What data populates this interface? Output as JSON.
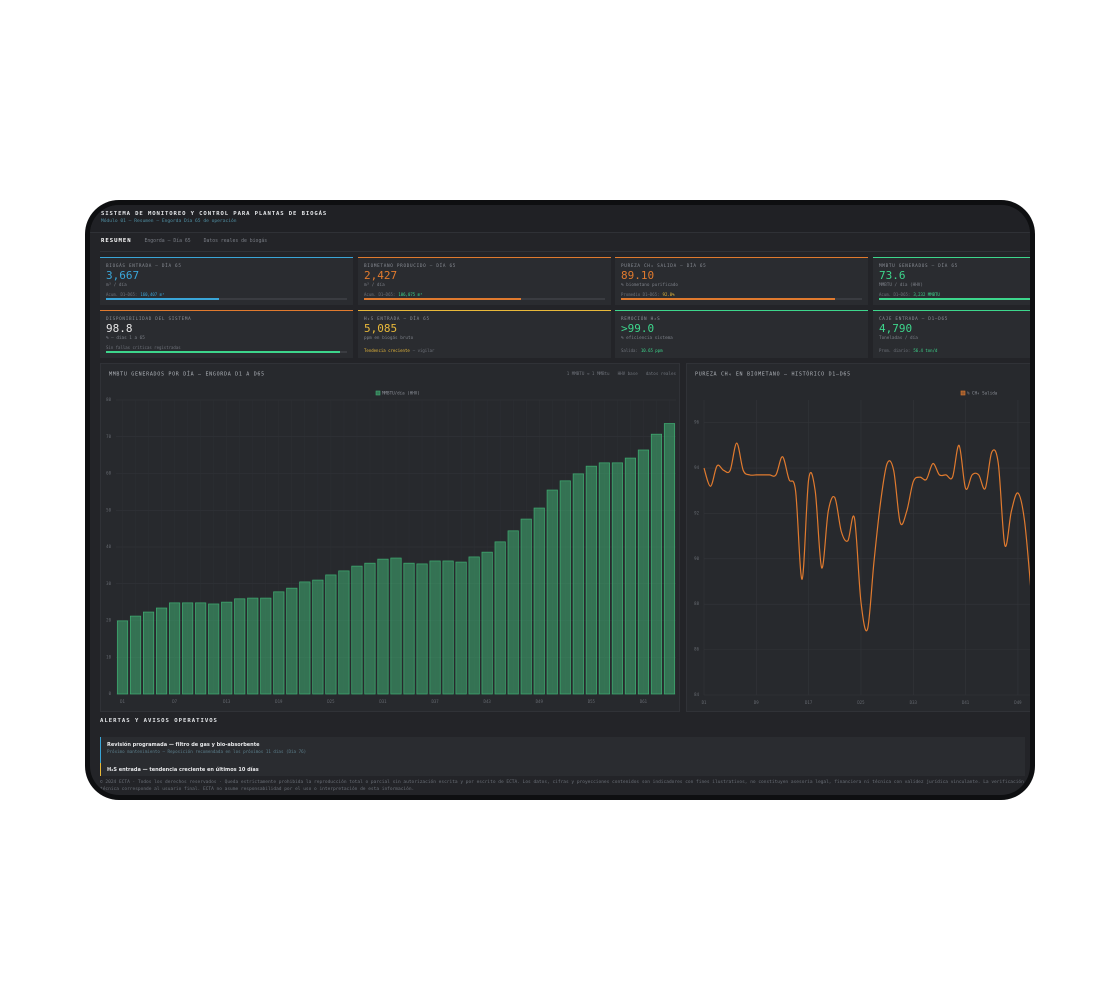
{
  "header": {
    "title": "SISTEMA DE MONITOREO Y CONTROL PARA PLANTAS DE BIOGÁS",
    "subtitle": "Módulo 01 — Resumen — Engorda Día 65 de operación"
  },
  "tabs": [
    "RESUMEN",
    "Engorda — Día 65",
    "Datos reales de biogás"
  ],
  "kpis": [
    {
      "label": "BIOGÁS ENTRADA — DÍA 65",
      "value": "3,667",
      "unit": "m³ / día",
      "note": [
        "Acum. D1–D65:",
        "160,407 m³"
      ],
      "note_highlight": 1,
      "note_color": "#3aa6d8",
      "color": "#3aa6d8",
      "border": "#3aa6d8",
      "bar": "#3aa6d8",
      "progress": 47
    },
    {
      "label": "BIOMETANO PRODUCIDO — DÍA 65",
      "value": "2,427",
      "unit": "m³ / día",
      "note": [
        "Acum. D1–D65:",
        "106,075 m³"
      ],
      "note_highlight": 1,
      "note_color": "#3dd68c",
      "color": "#e07a2e",
      "border": "#e07a2e",
      "bar": "#e07a2e",
      "progress": 65
    },
    {
      "label": "PUREZA CH₄ SALIDA — DÍA 65",
      "value": "89.10",
      "unit": "% biometano purificado",
      "note": [
        "Promedio D1–D65:",
        "92.0%"
      ],
      "note_highlight": 1,
      "note_color": "#e8b93a",
      "color": "#e07a2e",
      "border": "#e07a2e",
      "bar": "#e07a2e",
      "progress": 89
    },
    {
      "label": "MMBTU GENERADOS — DÍA 65",
      "value": "73.6",
      "unit": "MMBTU / día (HHV)",
      "note": [
        "Acum. D1–D65:",
        "3,232 MMBTU"
      ],
      "note_highlight": 1,
      "note_color": "#3dd68c",
      "color": "#3dd68c",
      "border": "#3dd68c",
      "bar": "#3dd68c",
      "progress": 100
    },
    {
      "label": "DISPONIBILIDAD DEL SISTEMA",
      "value": "98.8",
      "unit": "% — días 1 a 65",
      "note": [
        "Sin fallas críticas registradas"
      ],
      "color": "#e6e6e6",
      "border": "#e07a2e",
      "bar": "#3dd68c",
      "progress": 97
    },
    {
      "label": "H₂S ENTRADA — DÍA 65",
      "value": "5,085",
      "unit": "ppm en biogás bruto",
      "note": [
        "Tendencia creciente",
        "— vigilar"
      ],
      "note_highlight": 0,
      "note_color": "#e8b93a",
      "color": "#e8b93a",
      "border": "#e8b93a"
    },
    {
      "label": "REMOCIÓN H₂S",
      "value": ">99.0",
      "unit": "% eficiencia sistema",
      "note": [
        "Salida:",
        "10.65 ppm"
      ],
      "note_highlight": 1,
      "note_color": "#3dd68c",
      "color": "#3dd68c",
      "border": "#3dd68c"
    },
    {
      "label": "CAJE ENTRADA — D1–D65",
      "value": "4,790",
      "unit": "Toneladas / día",
      "note": [
        "Prom. diario:",
        "56.4 ton/d"
      ],
      "note_highlight": 1,
      "note_color": "#3dd68c",
      "color": "#3dd68c",
      "border": "#3dd68c"
    }
  ],
  "chart_data": [
    {
      "type": "bar",
      "title": "MMBTU GENERADOS POR DÍA — ENGORDA D1 A D65",
      "notes": [
        "1 MMBTU ≈ 1 MMBtu",
        "HHV base",
        "datos reales"
      ],
      "categories": [
        "D1",
        null,
        null,
        null,
        "D7",
        null,
        null,
        null,
        "D13",
        null,
        null,
        null,
        "D19",
        null,
        null,
        null,
        "D25",
        null,
        null,
        null,
        "D31",
        null,
        null,
        null,
        "D37",
        null,
        null,
        null,
        "D43",
        null,
        null,
        null,
        "D49",
        null,
        null,
        null,
        "D55",
        null,
        null,
        null,
        "D61",
        null,
        null
      ],
      "series": [
        {
          "name": "MMBTU/día (HHV)",
          "color": "#3fae72",
          "values": [
            19.9,
            21.2,
            22.3,
            23.4,
            24.8,
            24.8,
            24.8,
            24.5,
            25.0,
            25.9,
            26.1,
            26.1,
            27.8,
            28.8,
            30.5,
            31.0,
            32.4,
            33.5,
            34.8,
            35.6,
            36.7,
            37.0,
            35.6,
            35.4,
            36.2,
            36.2,
            35.9,
            37.3,
            38.6,
            41.4,
            44.4,
            47.6,
            50.6,
            55.5,
            58.0,
            59.9,
            62.0,
            62.9,
            62.9,
            64.2,
            66.4,
            70.7,
            73.6
          ]
        }
      ],
      "ylim": [
        0,
        80
      ],
      "yticks": [
        0,
        10,
        20,
        30,
        40,
        50,
        60,
        70,
        80
      ],
      "grid": true
    },
    {
      "type": "line",
      "title": "PUREZA CH₄ EN BIOMETANO — HISTÓRICO D1–D65",
      "x": [
        1,
        2,
        3,
        4,
        5,
        6,
        7,
        8,
        9,
        10,
        11,
        12,
        13,
        14,
        15,
        16,
        17,
        18,
        19,
        20,
        21,
        22,
        23,
        24,
        25,
        26,
        27,
        28,
        29,
        30,
        31,
        32,
        33,
        34,
        35,
        36,
        37,
        38,
        39,
        40,
        41,
        42,
        43,
        44,
        45,
        46,
        47,
        48,
        49,
        50,
        51
      ],
      "xlim": [
        1,
        51
      ],
      "xticks": [
        {
          "value": 1,
          "label": "D1"
        },
        {
          "value": 9,
          "label": "D9"
        },
        {
          "value": 17,
          "label": "D17"
        },
        {
          "value": 25,
          "label": "D25"
        },
        {
          "value": 33,
          "label": "D33"
        },
        {
          "value": 41,
          "label": "D41"
        },
        {
          "value": 49,
          "label": "D49"
        }
      ],
      "series": [
        {
          "name": "% CH₄ Salida",
          "color": "#e07a2e",
          "values": [
            94.0,
            93.2,
            94.1,
            93.9,
            93.9,
            95.1,
            93.9,
            93.7,
            93.7,
            93.7,
            93.7,
            93.7,
            94.5,
            93.5,
            93.0,
            89.1,
            93.5,
            93.0,
            89.6,
            92.1,
            92.7,
            91.2,
            90.8,
            91.8,
            88.1,
            86.9,
            89.9,
            92.5,
            94.2,
            93.9,
            91.6,
            92.1,
            93.4,
            93.6,
            93.5,
            94.2,
            93.7,
            93.7,
            93.6,
            95.0,
            93.1,
            93.7,
            93.7,
            93.1,
            94.7,
            94.2,
            90.6,
            92.1,
            92.9,
            91.7,
            88.6
          ]
        }
      ],
      "ylim": [
        84,
        97
      ],
      "yticks": [
        84,
        86,
        88,
        90,
        92,
        94,
        96
      ],
      "grid": true
    }
  ],
  "alerts": {
    "title": "ALERTAS Y AVISOS OPERATIVOS",
    "items": [
      {
        "title": "Revisión programada — filtro de gas y bio-absorbente",
        "detail": "Próximo mantenimiento — Reposición recomendada en los próximos 11 días (Día 76)",
        "color": "#3aa6d8"
      },
      {
        "title": "H₂S entrada — tendencia creciente en últimos 10 días",
        "color": "#e8b93a"
      }
    ]
  },
  "footer": "© 2024 ECTA · Todos los derechos reservados · Queda estrictamente prohibida la reproducción total o parcial sin autorización escrita y por escrito de ECTA. Los datos, cifras y proyecciones contenidos son indicadores con fines ilustrativos, no constituyen asesoría legal, financiera ni técnica con validez jurídica vinculante. La verificación técnica corresponde al usuario final. ECTA no asume responsabilidad por el uso o interpretación de esta información."
}
